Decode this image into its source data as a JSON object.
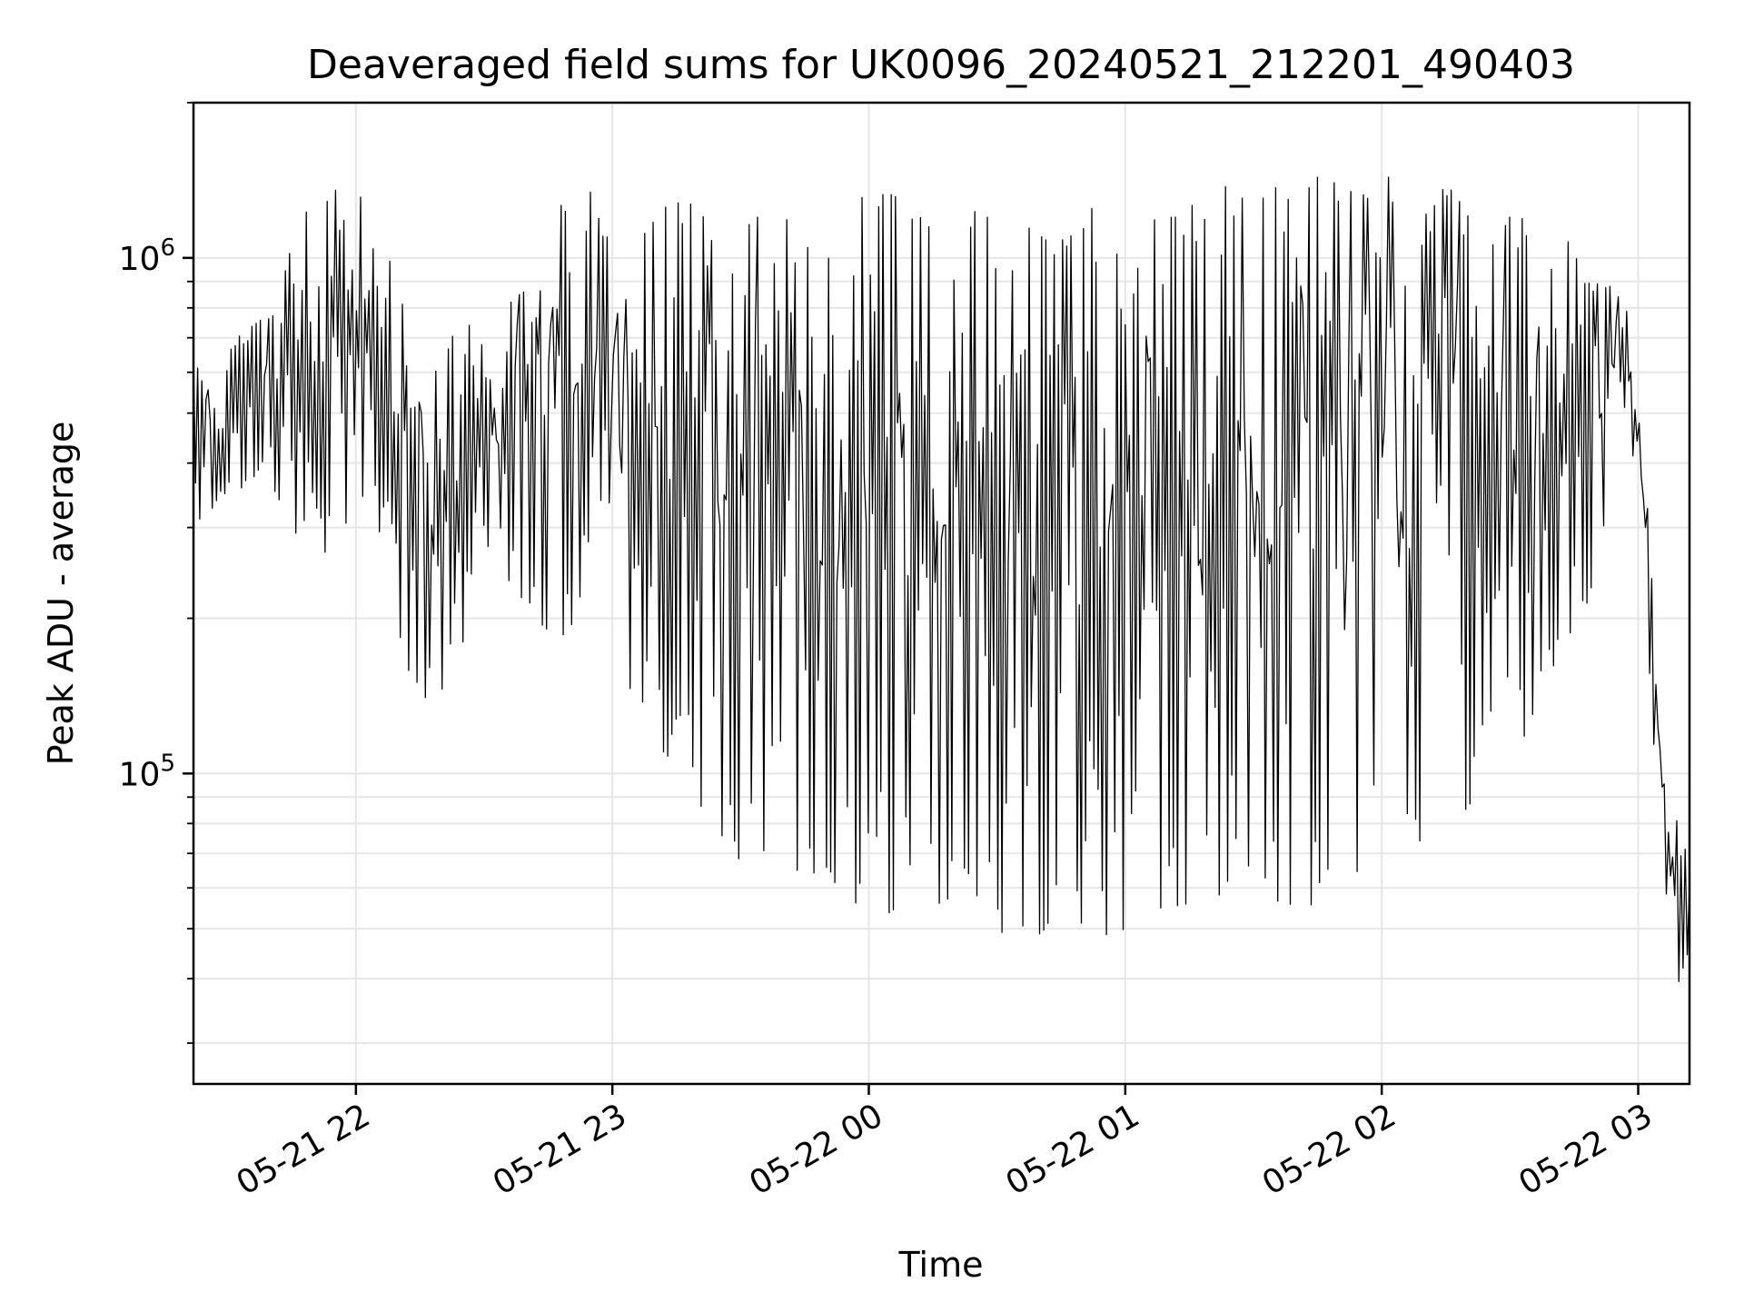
{
  "chart_data": {
    "type": "line",
    "title": "Deaveraged field sums for UK0096_20240521_212201_490403",
    "xlabel": "Time",
    "ylabel": "Peak ADU - average",
    "x_axis": {
      "kind": "time",
      "range": [
        "2024-05-21T21:22:00",
        "2024-05-22T03:12:00"
      ],
      "ticks": [
        {
          "value": "2024-05-21T22:00:00",
          "label": "05-21 22"
        },
        {
          "value": "2024-05-21T23:00:00",
          "label": "05-21 23"
        },
        {
          "value": "2024-05-22T00:00:00",
          "label": "05-22 00"
        },
        {
          "value": "2024-05-22T01:00:00",
          "label": "05-22 01"
        },
        {
          "value": "2024-05-22T02:00:00",
          "label": "05-22 02"
        },
        {
          "value": "2024-05-22T03:00:00",
          "label": "05-22 03"
        }
      ]
    },
    "y_axis": {
      "scale": "log",
      "range": [
        25000,
        2000000
      ],
      "ticks": [
        {
          "value": 100000,
          "base": "10",
          "exp": "5"
        },
        {
          "value": 1000000,
          "base": "10",
          "exp": "6"
        }
      ]
    },
    "grid": true,
    "line_color": "#000000",
    "series": [
      {
        "x": [
          "2024-05-21T21:22:00",
          "2024-05-21T21:27:00",
          "2024-05-21T21:32:00",
          "2024-05-21T21:37:00",
          "2024-05-21T21:42:00",
          "2024-05-21T21:47:00",
          "2024-05-21T21:52:00",
          "2024-05-21T21:57:00",
          "2024-05-21T22:02:00",
          "2024-05-21T22:07:00",
          "2024-05-21T22:12:00",
          "2024-05-21T22:17:00",
          "2024-05-21T22:22:00",
          "2024-05-21T22:27:00",
          "2024-05-21T22:32:00",
          "2024-05-21T22:37:00",
          "2024-05-21T22:42:00",
          "2024-05-21T22:47:00",
          "2024-05-21T22:52:00",
          "2024-05-21T22:57:00",
          "2024-05-21T23:02:00",
          "2024-05-21T23:07:00",
          "2024-05-21T23:12:00",
          "2024-05-21T23:17:00",
          "2024-05-21T23:22:00",
          "2024-05-21T23:27:00",
          "2024-05-21T23:32:00",
          "2024-05-21T23:37:00",
          "2024-05-21T23:42:00",
          "2024-05-21T23:47:00",
          "2024-05-21T23:52:00",
          "2024-05-21T23:57:00",
          "2024-05-22T00:02:00",
          "2024-05-22T00:07:00",
          "2024-05-22T00:12:00",
          "2024-05-22T00:17:00",
          "2024-05-22T00:22:00",
          "2024-05-22T00:27:00",
          "2024-05-22T00:32:00",
          "2024-05-22T00:37:00",
          "2024-05-22T00:42:00",
          "2024-05-22T00:47:00",
          "2024-05-22T00:52:00",
          "2024-05-22T00:57:00",
          "2024-05-22T01:02:00",
          "2024-05-22T01:07:00",
          "2024-05-22T01:12:00",
          "2024-05-22T01:17:00",
          "2024-05-22T01:22:00",
          "2024-05-22T01:27:00",
          "2024-05-22T01:32:00",
          "2024-05-22T01:37:00",
          "2024-05-22T01:42:00",
          "2024-05-22T01:47:00",
          "2024-05-22T01:52:00",
          "2024-05-22T01:57:00",
          "2024-05-22T02:02:00",
          "2024-05-22T02:07:00",
          "2024-05-22T02:12:00",
          "2024-05-22T02:17:00",
          "2024-05-22T02:22:00",
          "2024-05-22T02:27:00",
          "2024-05-22T02:32:00",
          "2024-05-22T02:37:00",
          "2024-05-22T02:42:00",
          "2024-05-22T02:47:00",
          "2024-05-22T02:52:00",
          "2024-05-22T02:57:00",
          "2024-05-22T03:02:00",
          "2024-05-22T03:07:00",
          "2024-05-22T03:12:00"
        ],
        "upper": [
          800000,
          600000,
          700000,
          750000,
          900000,
          1200000,
          1300000,
          1400000,
          1300000,
          1200000,
          850000,
          600000,
          700000,
          750000,
          800000,
          900000,
          1100000,
          1300000,
          1400000,
          1300000,
          1200000,
          1100000,
          1250000,
          1300000,
          1200000,
          1150000,
          1200000,
          1250000,
          1300000,
          1200000,
          1200000,
          1300000,
          1400000,
          1300000,
          1200000,
          1100000,
          1150000,
          1300000,
          1200000,
          1250000,
          1200000,
          1100000,
          1250000,
          1300000,
          1300000,
          1200000,
          1200000,
          1300000,
          1400000,
          1350000,
          1300000,
          1450000,
          1500000,
          1400000,
          1400000,
          1300000,
          1450000,
          1400000,
          1400000,
          1350000,
          1250000,
          1200000,
          1200000,
          1150000,
          1150000,
          1000000,
          900000,
          850000,
          350000,
          90000,
          70000
        ],
        "lower": [
          300000,
          330000,
          350000,
          380000,
          340000,
          280000,
          260000,
          300000,
          320000,
          280000,
          150000,
          130000,
          150000,
          200000,
          250000,
          230000,
          200000,
          180000,
          200000,
          170000,
          150000,
          130000,
          110000,
          100000,
          80000,
          70000,
          65000,
          63000,
          62000,
          60000,
          58000,
          56000,
          52000,
          55000,
          58000,
          55000,
          53000,
          50000,
          48000,
          47000,
          50000,
          49000,
          48000,
          49000,
          50000,
          52000,
          55000,
          56000,
          58000,
          60000,
          58000,
          56000,
          55000,
          57000,
          60000,
          62000,
          65000,
          70000,
          75000,
          80000,
          90000,
          100000,
          110000,
          140000,
          160000,
          200000,
          280000,
          500000,
          180000,
          45000,
          33000
        ]
      }
    ]
  }
}
